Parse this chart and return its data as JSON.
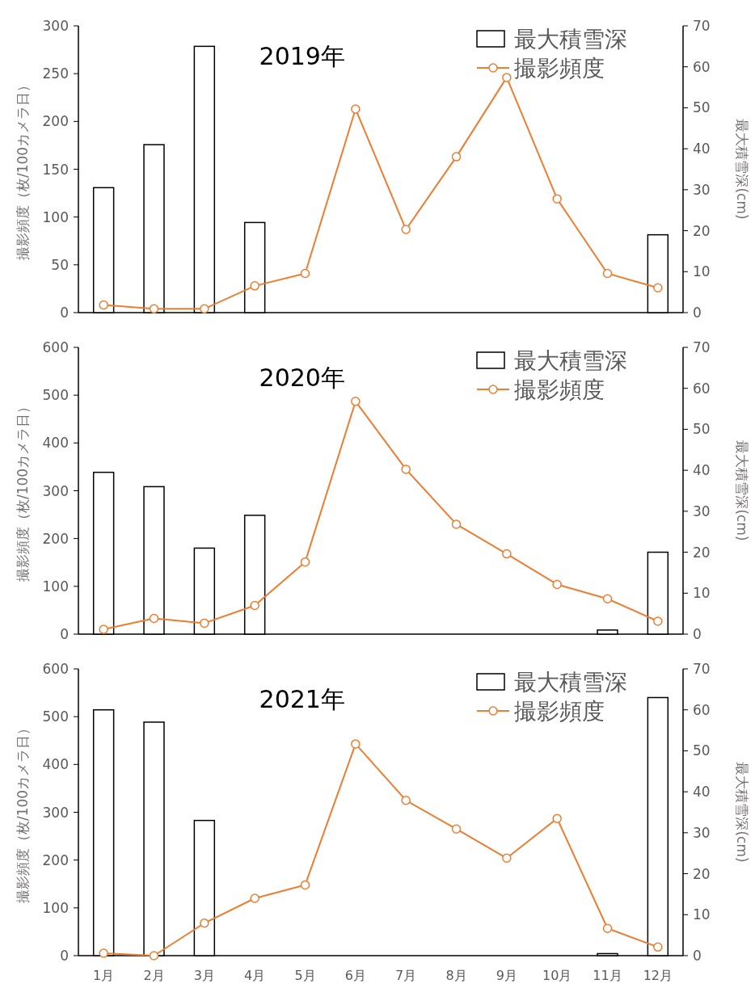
{
  "chart_data": [
    {
      "type": "bar",
      "title": "2019年",
      "ylabel": "撮影頻度（枚/100カメラ日）",
      "y2label": "最大積雪深(cm)",
      "categories": [
        null,
        null,
        null,
        null,
        null,
        null,
        null,
        null,
        null,
        null,
        null,
        null
      ],
      "ylim": [
        0,
        300
      ],
      "yticks": [
        0,
        50,
        100,
        150,
        200,
        250,
        300
      ],
      "y2lim": [
        0,
        70
      ],
      "y2ticks": [
        0,
        10,
        20,
        30,
        40,
        50,
        60,
        70
      ],
      "tick_labels": "y",
      "legend": "top right",
      "series": [
        {
          "name": "最大積雪深",
          "axis": "y2",
          "color": "#ffffff",
          "values": [
            30.5,
            41,
            65,
            22,
            null,
            null,
            null,
            null,
            null,
            null,
            null,
            19
          ]
        },
        {
          "name": "撮影頻度",
          "type": "line",
          "axis": "y",
          "color": "#ed7d31",
          "marker": "circle",
          "values": [
            8,
            4,
            4,
            28,
            41,
            213,
            87,
            163,
            246,
            119,
            41,
            26
          ]
        }
      ]
    },
    {
      "type": "bar",
      "title": "2020年",
      "ylabel": "撮影頻度（枚/100カメラ日）",
      "y2label": "最大積雪深(cm)",
      "categories": [
        null,
        null,
        null,
        null,
        null,
        null,
        null,
        null,
        null,
        null,
        null,
        null
      ],
      "ylim": [
        0,
        600
      ],
      "yticks": [
        0,
        100,
        200,
        300,
        400,
        500,
        600
      ],
      "y2lim": [
        0,
        70
      ],
      "y2ticks": [
        0,
        10,
        20,
        30,
        40,
        50,
        60,
        70
      ],
      "tick_labels": "y",
      "legend": "top right",
      "series": [
        {
          "name": "最大積雪深",
          "axis": "y2",
          "color": "#ffffff",
          "values": [
            39.5,
            36,
            21,
            29,
            null,
            null,
            null,
            null,
            null,
            null,
            1,
            20
          ]
        },
        {
          "name": "撮影頻度",
          "type": "line",
          "axis": "y",
          "color": "#ed7d31",
          "marker": "circle",
          "values": [
            10,
            33,
            23,
            60,
            151,
            487,
            345,
            230,
            168,
            104,
            74,
            27
          ]
        }
      ]
    },
    {
      "type": "bar",
      "title": "2021年",
      "ylabel": "撮影頻度（枚/100カメラ日）",
      "y2label": "最大積雪深(cm)",
      "categories": [
        "1月",
        "2月",
        "3月",
        "4月",
        "5月",
        "6月",
        "7月",
        "8月",
        "9月",
        "10月",
        "11月",
        "12月"
      ],
      "ylim": [
        0,
        600
      ],
      "yticks": [
        0,
        100,
        200,
        300,
        400,
        500,
        600
      ],
      "y2lim": [
        0,
        70
      ],
      "y2ticks": [
        0,
        10,
        20,
        30,
        40,
        50,
        60,
        70
      ],
      "legend": "top right",
      "series": [
        {
          "name": "最大積雪深",
          "axis": "y2",
          "color": "#ffffff",
          "values": [
            60,
            57,
            33,
            null,
            null,
            null,
            null,
            null,
            null,
            null,
            0.5,
            63
          ]
        },
        {
          "name": "撮影頻度",
          "type": "line",
          "axis": "y",
          "color": "#ed7d31",
          "marker": "circle",
          "values": [
            5,
            0,
            68,
            120,
            148,
            443,
            325,
            265,
            204,
            287,
            57,
            18
          ]
        }
      ]
    }
  ]
}
